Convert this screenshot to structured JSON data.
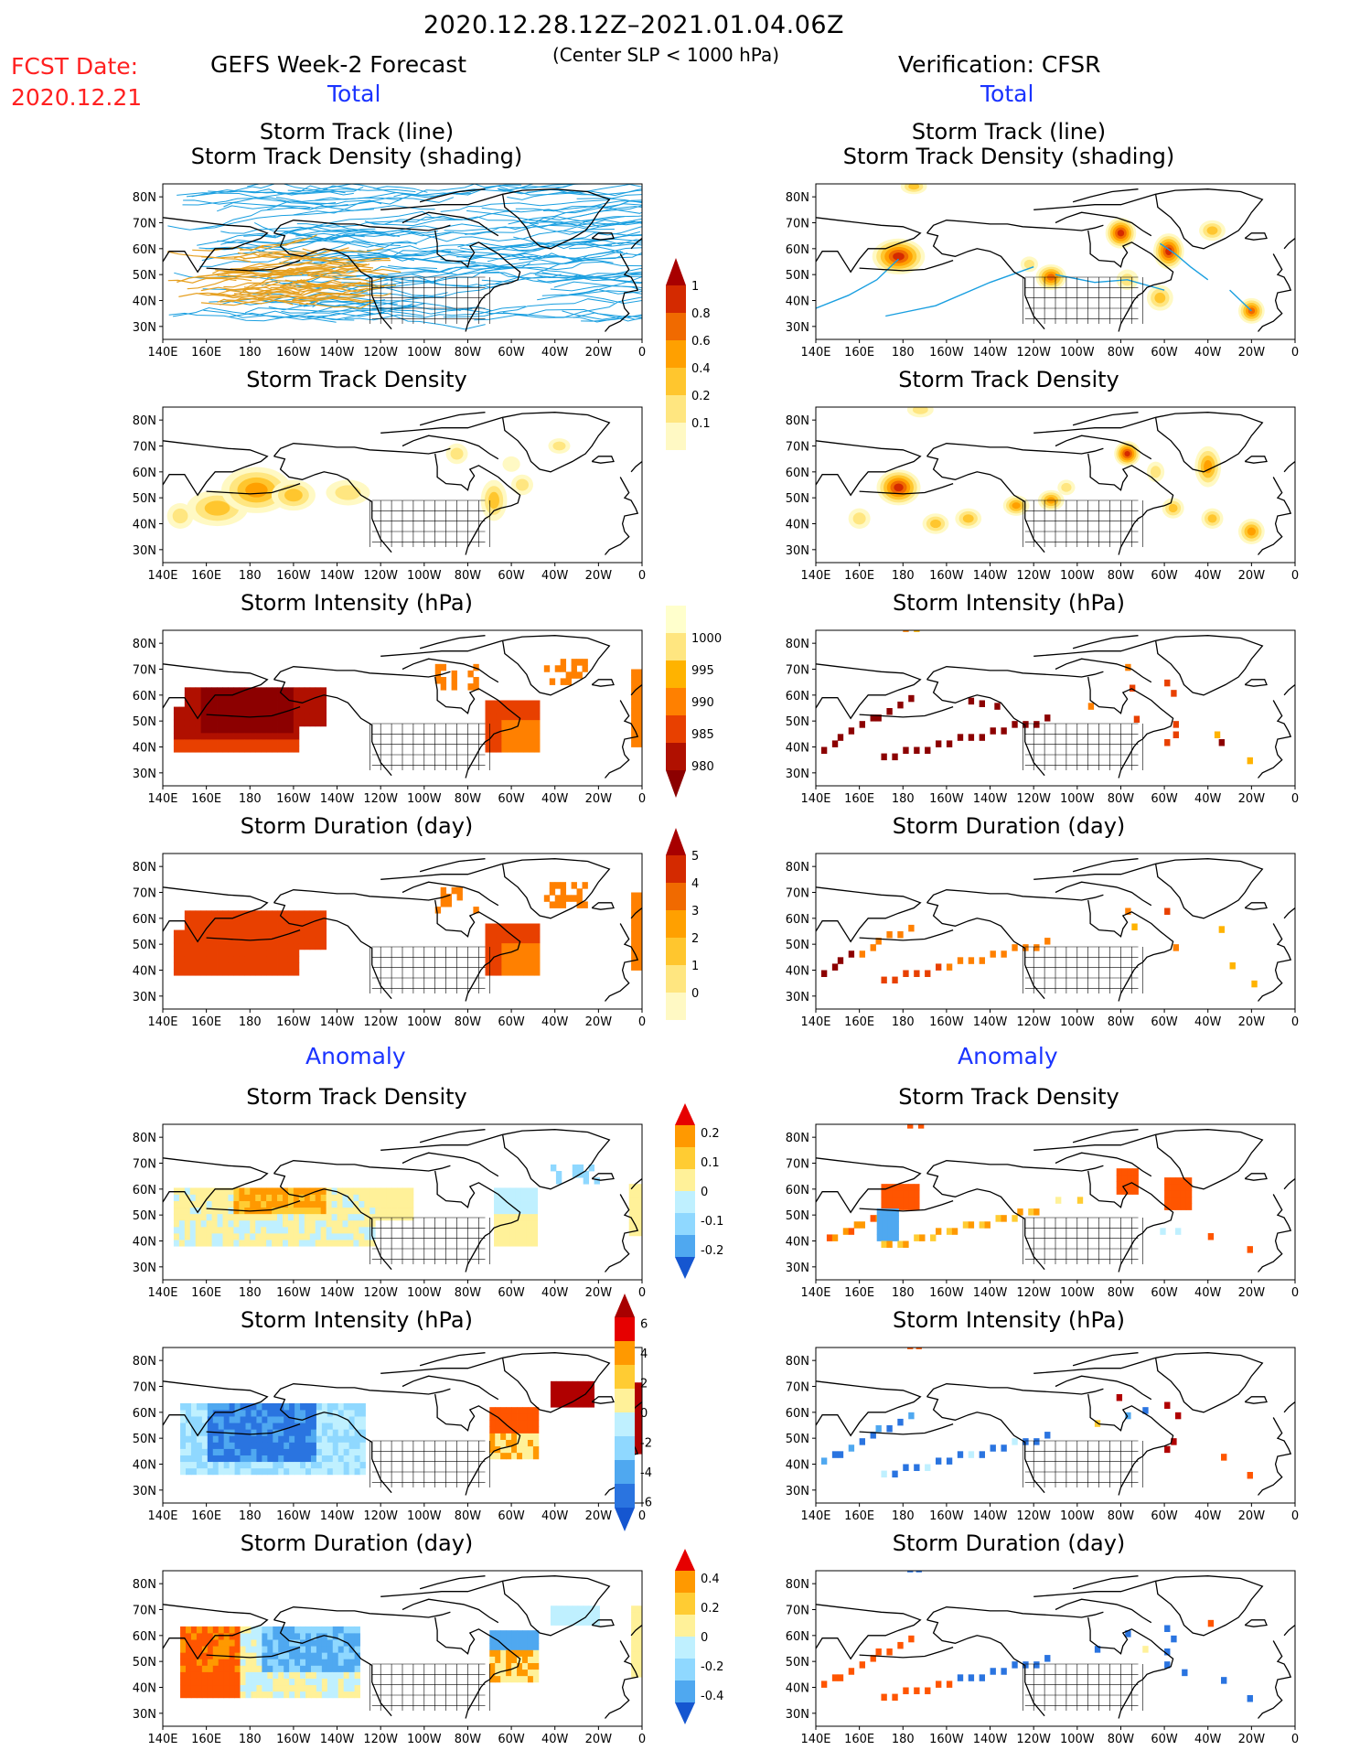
{
  "header": {
    "period": "2020.12.28.12Z–2021.01.04.06Z",
    "criterion": "(Center SLP < 1000 hPa)",
    "fcst_label": "FCST Date:",
    "fcst_date": "2020.12.21",
    "left_title": "GEFS Week-2 Forecast",
    "right_title": "Verification: CFSR",
    "total": "Total",
    "anomaly": "Anomaly"
  },
  "axes": {
    "lon_ticks": [
      "140E",
      "160E",
      "180",
      "160W",
      "140W",
      "120W",
      "100W",
      "80W",
      "60W",
      "40W",
      "20W",
      "0"
    ],
    "lat_ticks": [
      "80N",
      "70N",
      "60N",
      "50N",
      "40N",
      "30N"
    ]
  },
  "panels": {
    "track_title_1": "Storm Track (line)",
    "track_title_2": "Storm Track Density (shading)",
    "density": "Storm Track Density",
    "intensity": "Storm Intensity (hPa)",
    "duration": "Storm Duration (day)"
  },
  "colorbars": {
    "density_total": [
      "0.1",
      "0.2",
      "0.4",
      "0.6",
      "0.8",
      "1"
    ],
    "intensity_total": [
      "1000",
      "995",
      "990",
      "985",
      "980"
    ],
    "duration_total": [
      "0",
      "1",
      "2",
      "3",
      "4",
      "5"
    ],
    "density_anom": [
      "0.2",
      "0.1",
      "0",
      "-0.1",
      "-0.2"
    ],
    "intensity_anom": [
      "6",
      "4",
      "2",
      "0",
      "-2",
      "-4",
      "-6"
    ],
    "duration_anom": [
      "0.4",
      "0.2",
      "0",
      "-0.2",
      "-0.4"
    ]
  },
  "colors": {
    "seq": [
      "#fff9c4",
      "#ffe680",
      "#ffc62e",
      "#ffa000",
      "#f06a00",
      "#d42a00",
      "#a80000"
    ],
    "div_pos": [
      "#fff199",
      "#ffcc33",
      "#ff9900",
      "#ff5500",
      "#e60000"
    ],
    "div_neg": [
      "#bff0ff",
      "#8fd8ff",
      "#4fa8f0",
      "#2a74e0",
      "#1556d0"
    ],
    "track_line": "#1a9fe0",
    "track_density": "#e6a020",
    "title_red": "#ff2020",
    "title_blue": "#1a33ff"
  }
}
